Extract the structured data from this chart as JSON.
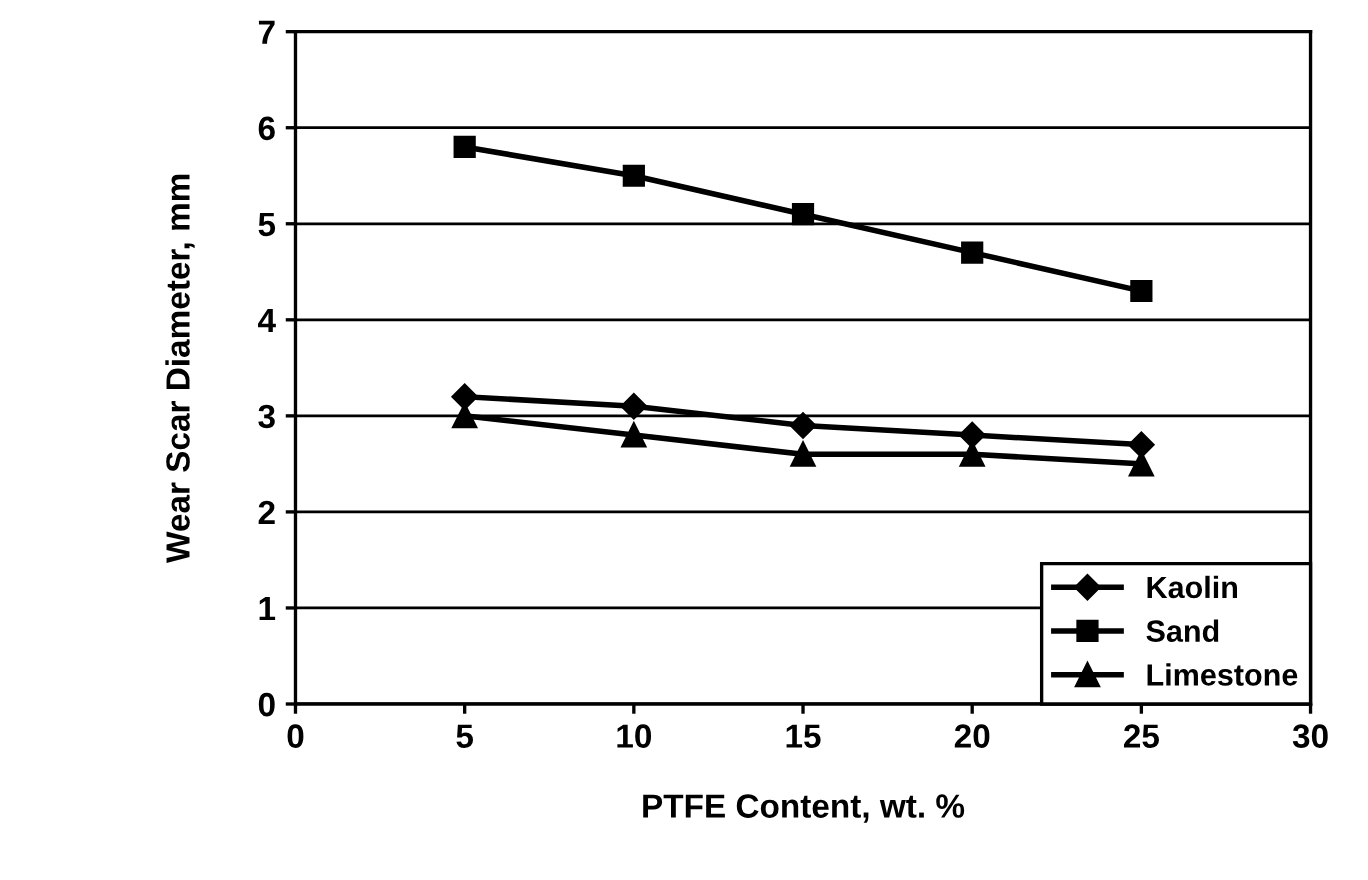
{
  "chart_data": {
    "type": "line",
    "xlabel": "PTFE Content, wt. %",
    "ylabel": "Wear Scar Diameter, mm",
    "x": [
      5,
      10,
      15,
      20,
      25
    ],
    "series": [
      {
        "name": "Kaolin",
        "color": "#000000",
        "marker": "diamond",
        "values": [
          3.2,
          3.1,
          2.9,
          2.8,
          2.7
        ]
      },
      {
        "name": "Sand",
        "color": "#000000",
        "marker": "square",
        "values": [
          5.8,
          5.5,
          5.1,
          4.7,
          4.3
        ]
      },
      {
        "name": "Limestone",
        "color": "#000000",
        "marker": "triangle",
        "values": [
          3.0,
          2.8,
          2.6,
          2.6,
          2.5
        ]
      }
    ],
    "xlim": [
      0,
      30
    ],
    "xticks": [
      0,
      5,
      10,
      15,
      20,
      25,
      30
    ],
    "ylim": [
      0,
      7
    ],
    "yticks": [
      0,
      1,
      2,
      3,
      4,
      5,
      6,
      7
    ],
    "grid": "y",
    "legend": "bottom right",
    "line_style": "solid"
  }
}
